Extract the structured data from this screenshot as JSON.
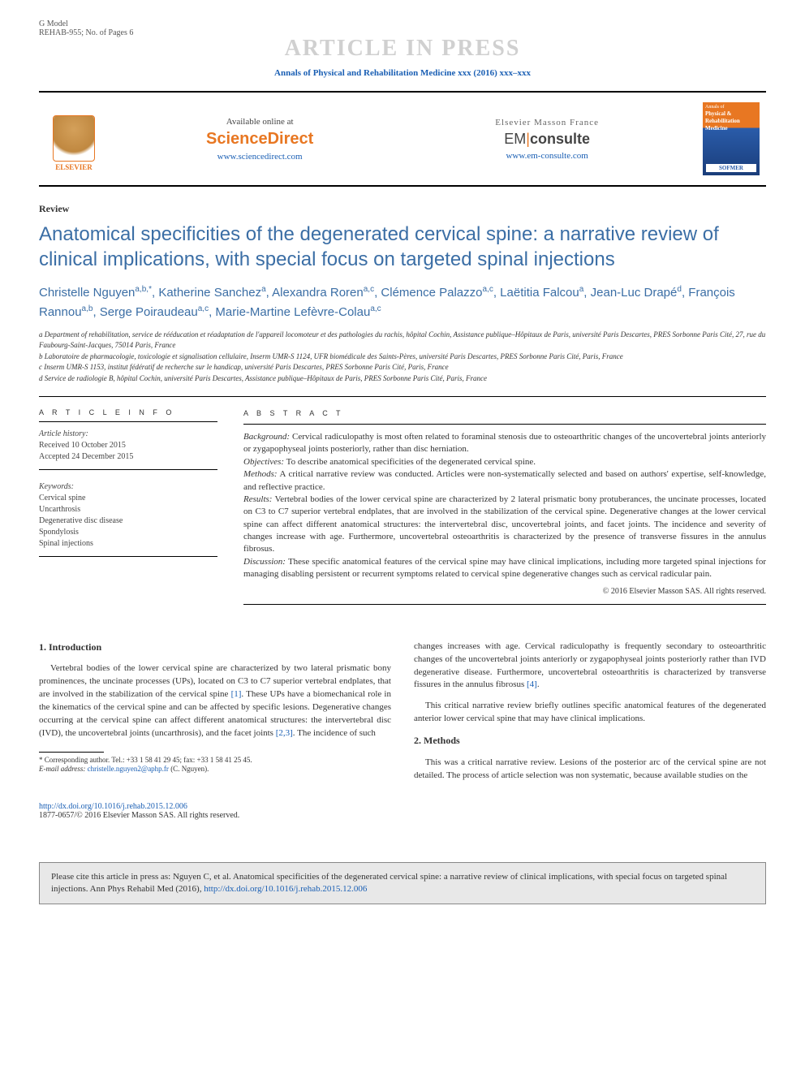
{
  "topbar": {
    "left_line1": "G Model",
    "left_line2": "REHAB-955; No. of Pages 6",
    "watermark": "ARTICLE IN PRESS"
  },
  "journal_line": "Annals of Physical and Rehabilitation Medicine xxx (2016) xxx–xxx",
  "header": {
    "elsevier": "ELSEVIER",
    "sd_available": "Available online at",
    "sd_brand": "ScienceDirect",
    "sd_link": "www.sciencedirect.com",
    "em_top": "Elsevier Masson France",
    "em_em": "EM",
    "em_consulte": "consulte",
    "em_link": "www.em-consulte.com",
    "cover_t1": "Annals of",
    "cover_t2a": "Physical &",
    "cover_t2b": "Rehabilitation",
    "cover_t2c": "Medicine",
    "cover_sofmer": "SOFMER"
  },
  "article": {
    "type": "Review",
    "title": "Anatomical specificities of the degenerated cervical spine: a narrative review of clinical implications, with special focus on targeted spinal injections"
  },
  "authors": {
    "a1": "Christelle Nguyen",
    "a1s": "a,b,*",
    "a2": "Katherine Sanchez",
    "a2s": "a",
    "a3": "Alexandra Roren",
    "a3s": "a,c",
    "a4": "Clémence Palazzo",
    "a4s": "a,c",
    "a5": "Laëtitia Falcou",
    "a5s": "a",
    "a6": "Jean-Luc Drapé",
    "a6s": "d",
    "a7": "François Rannou",
    "a7s": "a,b",
    "a8": "Serge Poiraudeau",
    "a8s": "a,c",
    "a9": "Marie-Martine Lefèvre-Colau",
    "a9s": "a,c"
  },
  "affiliations": {
    "a": "a Department of rehabilitation, service de rééducation et réadaptation de l'appareil locomoteur et des pathologies du rachis, hôpital Cochin, Assistance publique–Hôpitaux de Paris, université Paris Descartes, PRES Sorbonne Paris Cité, 27, rue du Faubourg-Saint-Jacques, 75014 Paris, France",
    "b": "b Laboratoire de pharmacologie, toxicologie et signalisation cellulaire, Inserm UMR-S 1124, UFR biomédicale des Saints-Pères, université Paris Descartes, PRES Sorbonne Paris Cité, Paris, France",
    "c": "c Inserm UMR-S 1153, institut fédératif de recherche sur le handicap, université Paris Descartes, PRES Sorbonne Paris Cité, Paris, France",
    "d": "d Service de radiologie B, hôpital Cochin, université Paris Descartes, Assistance publique–Hôpitaux de Paris, PRES Sorbonne Paris Cité, Paris, France"
  },
  "info": {
    "heading": "A R T I C L E   I N F O",
    "history_label": "Article history:",
    "received": "Received 10 October 2015",
    "accepted": "Accepted 24 December 2015",
    "keywords_label": "Keywords:",
    "kw1": "Cervical spine",
    "kw2": "Uncarthrosis",
    "kw3": "Degenerative disc disease",
    "kw4": "Spondylosis",
    "kw5": "Spinal injections"
  },
  "abstract": {
    "heading": "A B S T R A C T",
    "bg_label": "Background:",
    "bg": " Cervical radiculopathy is most often related to foraminal stenosis due to osteoarthritic changes of the uncovertebral joints anteriorly or zygapophyseal joints posteriorly, rather than disc herniation.",
    "obj_label": "Objectives:",
    "obj": " To describe anatomical specificities of the degenerated cervical spine.",
    "met_label": "Methods:",
    "met": " A critical narrative review was conducted. Articles were non-systematically selected and based on authors' expertise, self-knowledge, and reflective practice.",
    "res_label": "Results:",
    "res": " Vertebral bodies of the lower cervical spine are characterized by 2 lateral prismatic bony protuberances, the uncinate processes, located on C3 to C7 superior vertebral endplates, that are involved in the stabilization of the cervical spine. Degenerative changes at the lower cervical spine can affect different anatomical structures: the intervertebral disc, uncovertebral joints, and facet joints. The incidence and severity of changes increase with age. Furthermore, uncovertebral osteoarthritis is characterized by the presence of transverse fissures in the annulus fibrosus.",
    "dis_label": "Discussion:",
    "dis": " These specific anatomical features of the cervical spine may have clinical implications, including more targeted spinal injections for managing disabling persistent or recurrent symptoms related to cervical spine degenerative changes such as cervical radicular pain.",
    "copyright": "© 2016 Elsevier Masson SAS. All rights reserved."
  },
  "body": {
    "s1_title": "1. Introduction",
    "s1_p1a": "Vertebral bodies of the lower cervical spine are characterized by two lateral prismatic bony prominences, the uncinate processes (UPs), located on C3 to C7 superior vertebral endplates, that are involved in the stabilization of the cervical spine ",
    "s1_r1": "[1]",
    "s1_p1b": ". These UPs have a biomechanical role in the kinematics of the cervical spine and can be affected by specific lesions. Degenerative changes occurring at the cervical spine can affect different anatomical structures: the intervertebral disc (IVD), the uncovertebral joints (uncarthrosis), and the facet joints ",
    "s1_r2": "[2,3]",
    "s1_p1c": ". The incidence of such",
    "s1_p2a": "changes increases with age. Cervical radiculopathy is frequently secondary to osteoarthritic changes of the uncovertebral joints anteriorly or zygapophyseal joints posteriorly rather than IVD degenerative disease. Furthermore, uncovertebral osteoarthritis is characterized by transverse fissures in the annulus fibrosus ",
    "s1_r3": "[4]",
    "s1_p2b": ".",
    "s1_p3": "This critical narrative review briefly outlines specific anatomical features of the degenerated anterior lower cervical spine that may have clinical implications.",
    "s2_title": "2. Methods",
    "s2_p1": "This was a critical narrative review. Lesions of the posterior arc of the cervical spine are not detailed. The process of article selection was non systematic, because available studies on the"
  },
  "footnote": {
    "corr": "* Corresponding author. Tel.: +33 1 58 41 29 45; fax: +33 1 58 41 25 45.",
    "email_label": "E-mail address: ",
    "email": "christelle.nguyen2@aphp.fr",
    "email_tail": " (C. Nguyen)."
  },
  "doi": {
    "link": "http://dx.doi.org/10.1016/j.rehab.2015.12.006",
    "issn": "1877-0657/© 2016 Elsevier Masson SAS. All rights reserved."
  },
  "citebox": {
    "text_a": "Please cite this article in press as: Nguyen C, et al. Anatomical specificities of the degenerated cervical spine: a narrative review of clinical implications, with special focus on targeted spinal injections. Ann Phys Rehabil Med (2016), ",
    "link": "http://dx.doi.org/10.1016/j.rehab.2015.12.006"
  },
  "colors": {
    "link": "#1a5fb4",
    "accent": "#e87722",
    "title": "#3b6ea5"
  }
}
